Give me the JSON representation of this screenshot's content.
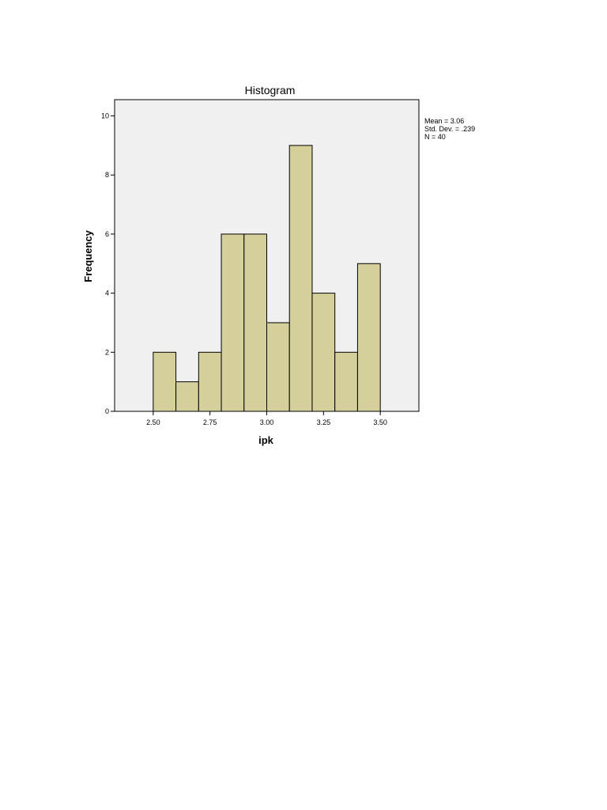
{
  "chart_data": {
    "type": "bar",
    "title": "Histogram",
    "xlabel": "ipk",
    "ylabel": "Frequency",
    "bin_width": 0.1,
    "bins": [
      {
        "start": 2.5,
        "end": 2.6,
        "count": 2
      },
      {
        "start": 2.6,
        "end": 2.7,
        "count": 1
      },
      {
        "start": 2.7,
        "end": 2.8,
        "count": 2
      },
      {
        "start": 2.8,
        "end": 2.9,
        "count": 6
      },
      {
        "start": 2.9,
        "end": 3.0,
        "count": 6
      },
      {
        "start": 3.0,
        "end": 3.1,
        "count": 3
      },
      {
        "start": 3.1,
        "end": 3.2,
        "count": 9
      },
      {
        "start": 3.2,
        "end": 3.3,
        "count": 4
      },
      {
        "start": 3.3,
        "end": 3.4,
        "count": 2
      },
      {
        "start": 3.4,
        "end": 3.5,
        "count": 5
      }
    ],
    "xlim": [
      2.33,
      3.67
    ],
    "ylim": [
      0,
      10.55
    ],
    "x_ticks": [
      {
        "value": 2.5,
        "label": "2.50"
      },
      {
        "value": 2.75,
        "label": "2.75"
      },
      {
        "value": 3.0,
        "label": "3.00"
      },
      {
        "value": 3.25,
        "label": "3.25"
      },
      {
        "value": 3.5,
        "label": "3.50"
      }
    ],
    "y_ticks": [
      {
        "value": 0,
        "label": "0"
      },
      {
        "value": 2,
        "label": "2"
      },
      {
        "value": 4,
        "label": "4"
      },
      {
        "value": 6,
        "label": "6"
      },
      {
        "value": 8,
        "label": "8"
      },
      {
        "value": 10,
        "label": "10"
      }
    ],
    "stats": [
      "Mean = 3.06",
      "Std. Dev. = .239",
      "N = 40"
    ],
    "legend_placement": "right",
    "grid": false,
    "colors": {
      "bar_fill": "#d5cf9c",
      "bar_stroke": "#000000",
      "plot_background": "#f0f0f0"
    }
  }
}
